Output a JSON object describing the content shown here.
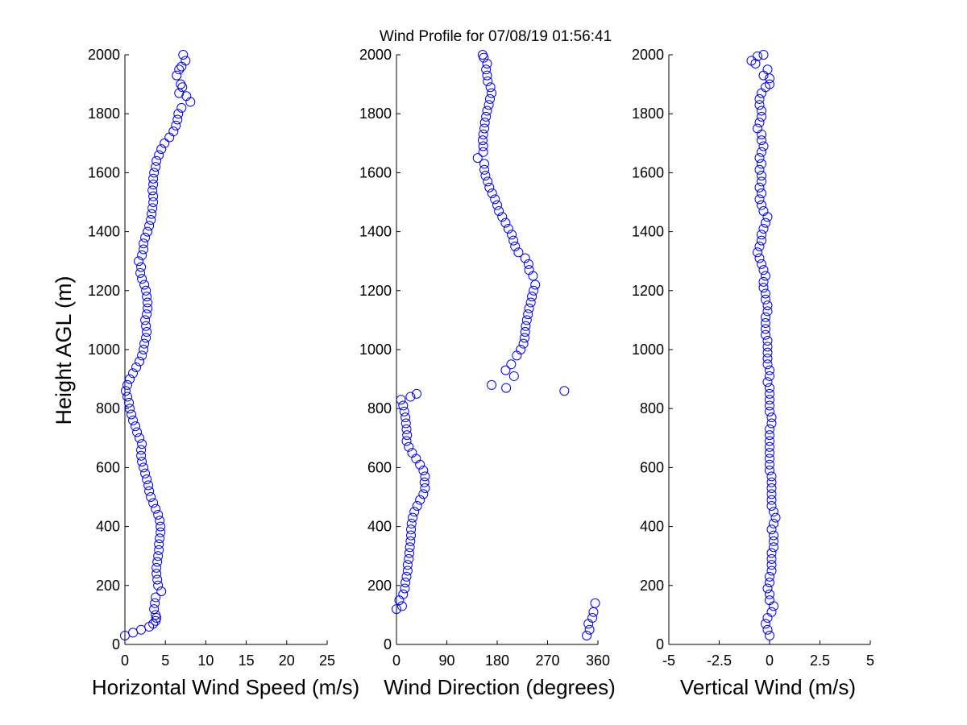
{
  "title": "Wind Profile for  07/08/19 01:56:41",
  "ylabel": "Height AGL (m)",
  "colors": {
    "marker": "#0000ff",
    "axis": "#000000",
    "background": "#ffffff"
  },
  "chart_data": [
    {
      "type": "scatter",
      "name": "speed",
      "xlabel": "Horizontal Wind Speed (m/s)",
      "ylabel": "Height AGL (m)",
      "xlim": [
        0,
        25
      ],
      "ylim": [
        0,
        2000
      ],
      "xticks": [
        "0",
        "5",
        "10",
        "15",
        "20",
        "25"
      ],
      "yticks": [
        "0",
        "200",
        "400",
        "600",
        "800",
        "1000",
        "1200",
        "1400",
        "1600",
        "1800",
        "2000"
      ],
      "grid": false,
      "marker": "open-circle",
      "points": [
        [
          0,
          30
        ],
        [
          1,
          40
        ],
        [
          2,
          50
        ],
        [
          3,
          60
        ],
        [
          3.5,
          70
        ],
        [
          3.8,
          80
        ],
        [
          3.9,
          90
        ],
        [
          3.8,
          100
        ],
        [
          3.6,
          120
        ],
        [
          3.7,
          140
        ],
        [
          3.8,
          160
        ],
        [
          4.5,
          180
        ],
        [
          4.1,
          200
        ],
        [
          4,
          220
        ],
        [
          3.9,
          240
        ],
        [
          3.9,
          260
        ],
        [
          4,
          280
        ],
        [
          4.1,
          300
        ],
        [
          4.2,
          320
        ],
        [
          4.2,
          340
        ],
        [
          4.3,
          360
        ],
        [
          4.4,
          380
        ],
        [
          4.4,
          400
        ],
        [
          4.3,
          420
        ],
        [
          4.1,
          440
        ],
        [
          3.8,
          460
        ],
        [
          3.5,
          480
        ],
        [
          3.2,
          500
        ],
        [
          3,
          520
        ],
        [
          2.9,
          540
        ],
        [
          2.7,
          560
        ],
        [
          2.5,
          580
        ],
        [
          2.3,
          600
        ],
        [
          2.1,
          620
        ],
        [
          2,
          640
        ],
        [
          2,
          660
        ],
        [
          2.1,
          680
        ],
        [
          1.8,
          700
        ],
        [
          1.5,
          720
        ],
        [
          1.3,
          740
        ],
        [
          1,
          760
        ],
        [
          0.8,
          780
        ],
        [
          0.6,
          800
        ],
        [
          0.5,
          820
        ],
        [
          0.3,
          840
        ],
        [
          0.1,
          860
        ],
        [
          0.3,
          880
        ],
        [
          0.6,
          900
        ],
        [
          1,
          920
        ],
        [
          1.4,
          940
        ],
        [
          1.8,
          960
        ],
        [
          2.1,
          980
        ],
        [
          2.3,
          1000
        ],
        [
          2.4,
          1020
        ],
        [
          2.6,
          1040
        ],
        [
          2.7,
          1060
        ],
        [
          2.6,
          1080
        ],
        [
          2.5,
          1100
        ],
        [
          2.7,
          1120
        ],
        [
          2.8,
          1140
        ],
        [
          2.8,
          1160
        ],
        [
          2.7,
          1180
        ],
        [
          2.6,
          1200
        ],
        [
          2.4,
          1220
        ],
        [
          2.1,
          1240
        ],
        [
          1.9,
          1260
        ],
        [
          2,
          1280
        ],
        [
          1.7,
          1300
        ],
        [
          2.1,
          1320
        ],
        [
          2.3,
          1340
        ],
        [
          2.3,
          1360
        ],
        [
          2.5,
          1380
        ],
        [
          2.8,
          1400
        ],
        [
          3,
          1420
        ],
        [
          3.2,
          1440
        ],
        [
          3.3,
          1460
        ],
        [
          3.4,
          1480
        ],
        [
          3.5,
          1500
        ],
        [
          3.5,
          1520
        ],
        [
          3.4,
          1540
        ],
        [
          3.5,
          1560
        ],
        [
          3.5,
          1580
        ],
        [
          3.6,
          1600
        ],
        [
          3.8,
          1620
        ],
        [
          3.9,
          1640
        ],
        [
          4.2,
          1660
        ],
        [
          4.5,
          1680
        ],
        [
          4.9,
          1700
        ],
        [
          5.5,
          1720
        ],
        [
          6,
          1740
        ],
        [
          6.3,
          1760
        ],
        [
          6.5,
          1780
        ],
        [
          6.6,
          1800
        ],
        [
          7,
          1820
        ],
        [
          8.1,
          1840
        ],
        [
          7.6,
          1860
        ],
        [
          6.7,
          1870
        ],
        [
          7.1,
          1890
        ],
        [
          6.9,
          1900
        ],
        [
          6.4,
          1930
        ],
        [
          6.7,
          1950
        ],
        [
          7,
          1960
        ],
        [
          7.5,
          1980
        ],
        [
          7.2,
          2000
        ]
      ]
    },
    {
      "type": "scatter",
      "name": "direction",
      "xlabel": "Wind Direction (degrees)",
      "xlim": [
        0,
        360
      ],
      "ylim": [
        0,
        2000
      ],
      "xticks": [
        "0",
        "90",
        "180",
        "270",
        "360"
      ],
      "yticks": [
        "0",
        "200",
        "400",
        "600",
        "800",
        "1000",
        "1200",
        "1400",
        "1600",
        "1800",
        "2000"
      ],
      "grid": false,
      "marker": "open-circle",
      "points": [
        [
          340,
          30
        ],
        [
          345,
          50
        ],
        [
          343,
          70
        ],
        [
          350,
          90
        ],
        [
          352,
          110
        ],
        [
          355,
          140
        ],
        [
          0,
          120
        ],
        [
          10,
          130
        ],
        [
          5,
          150
        ],
        [
          12,
          170
        ],
        [
          15,
          190
        ],
        [
          16,
          210
        ],
        [
          18,
          230
        ],
        [
          20,
          250
        ],
        [
          20,
          270
        ],
        [
          22,
          290
        ],
        [
          23,
          310
        ],
        [
          24,
          330
        ],
        [
          25,
          350
        ],
        [
          26,
          370
        ],
        [
          26,
          390
        ],
        [
          27,
          410
        ],
        [
          29,
          430
        ],
        [
          32,
          450
        ],
        [
          37,
          470
        ],
        [
          42,
          490
        ],
        [
          48,
          510
        ],
        [
          51,
          530
        ],
        [
          50,
          550
        ],
        [
          51,
          570
        ],
        [
          48,
          590
        ],
        [
          42,
          610
        ],
        [
          35,
          630
        ],
        [
          28,
          650
        ],
        [
          22,
          670
        ],
        [
          18,
          690
        ],
        [
          19,
          710
        ],
        [
          18,
          730
        ],
        [
          17,
          750
        ],
        [
          16,
          770
        ],
        [
          14,
          790
        ],
        [
          12,
          810
        ],
        [
          8,
          830
        ],
        [
          25,
          840
        ],
        [
          36,
          850
        ],
        [
          300,
          860
        ],
        [
          196,
          870
        ],
        [
          170,
          880
        ],
        [
          210,
          910
        ],
        [
          195,
          930
        ],
        [
          205,
          950
        ],
        [
          215,
          980
        ],
        [
          222,
          1000
        ],
        [
          227,
          1020
        ],
        [
          229,
          1040
        ],
        [
          230,
          1060
        ],
        [
          231,
          1080
        ],
        [
          233,
          1100
        ],
        [
          235,
          1120
        ],
        [
          237,
          1140
        ],
        [
          240,
          1160
        ],
        [
          242,
          1180
        ],
        [
          245,
          1200
        ],
        [
          248,
          1220
        ],
        [
          244,
          1250
        ],
        [
          237,
          1270
        ],
        [
          236,
          1290
        ],
        [
          230,
          1310
        ],
        [
          218,
          1330
        ],
        [
          212,
          1350
        ],
        [
          209,
          1370
        ],
        [
          206,
          1390
        ],
        [
          200,
          1410
        ],
        [
          195,
          1430
        ],
        [
          189,
          1450
        ],
        [
          183,
          1470
        ],
        [
          180,
          1490
        ],
        [
          176,
          1510
        ],
        [
          171,
          1530
        ],
        [
          166,
          1550
        ],
        [
          163,
          1570
        ],
        [
          159,
          1590
        ],
        [
          157,
          1610
        ],
        [
          157,
          1630
        ],
        [
          145,
          1650
        ],
        [
          155,
          1670
        ],
        [
          155,
          1690
        ],
        [
          154,
          1710
        ],
        [
          155,
          1730
        ],
        [
          157,
          1750
        ],
        [
          158,
          1770
        ],
        [
          160,
          1790
        ],
        [
          162,
          1810
        ],
        [
          165,
          1830
        ],
        [
          167,
          1850
        ],
        [
          170,
          1870
        ],
        [
          168,
          1890
        ],
        [
          163,
          1910
        ],
        [
          162,
          1930
        ],
        [
          160,
          1950
        ],
        [
          162,
          1970
        ],
        [
          156,
          1990
        ],
        [
          154,
          2000
        ]
      ]
    },
    {
      "type": "scatter",
      "name": "vertical",
      "xlabel": "Vertical Wind (m/s)",
      "xlim": [
        -5,
        5
      ],
      "ylim": [
        0,
        2000
      ],
      "xticks": [
        "-5",
        "-2.5",
        "0",
        "2.5",
        "5"
      ],
      "yticks": [
        "0",
        "200",
        "400",
        "600",
        "800",
        "1000",
        "1200",
        "1400",
        "1600",
        "1800",
        "2000"
      ],
      "grid": false,
      "marker": "open-circle",
      "points": [
        [
          0,
          30
        ],
        [
          -0.1,
          50
        ],
        [
          -0.2,
          70
        ],
        [
          -0.1,
          90
        ],
        [
          0.1,
          110
        ],
        [
          0.2,
          130
        ],
        [
          0,
          150
        ],
        [
          0,
          170
        ],
        [
          -0.1,
          190
        ],
        [
          0,
          210
        ],
        [
          0,
          230
        ],
        [
          0.1,
          250
        ],
        [
          0.1,
          270
        ],
        [
          0.1,
          290
        ],
        [
          0.1,
          310
        ],
        [
          0.2,
          330
        ],
        [
          0.2,
          350
        ],
        [
          0.2,
          370
        ],
        [
          0.1,
          390
        ],
        [
          0.2,
          410
        ],
        [
          0.3,
          430
        ],
        [
          0.2,
          450
        ],
        [
          0.1,
          470
        ],
        [
          0.1,
          490
        ],
        [
          0.1,
          510
        ],
        [
          0.1,
          530
        ],
        [
          0.1,
          550
        ],
        [
          0.1,
          570
        ],
        [
          0,
          590
        ],
        [
          0,
          610
        ],
        [
          0,
          630
        ],
        [
          0,
          650
        ],
        [
          0,
          670
        ],
        [
          0,
          690
        ],
        [
          0,
          710
        ],
        [
          0,
          730
        ],
        [
          0.1,
          750
        ],
        [
          0.1,
          770
        ],
        [
          0,
          790
        ],
        [
          0,
          810
        ],
        [
          0,
          830
        ],
        [
          0,
          850
        ],
        [
          0,
          870
        ],
        [
          -0.1,
          890
        ],
        [
          0,
          910
        ],
        [
          0,
          930
        ],
        [
          -0.1,
          950
        ],
        [
          -0.1,
          970
        ],
        [
          -0.1,
          990
        ],
        [
          -0.1,
          1010
        ],
        [
          -0.1,
          1030
        ],
        [
          -0.2,
          1050
        ],
        [
          -0.2,
          1070
        ],
        [
          -0.2,
          1090
        ],
        [
          -0.2,
          1110
        ],
        [
          -0.1,
          1130
        ],
        [
          -0.1,
          1150
        ],
        [
          -0.2,
          1170
        ],
        [
          -0.2,
          1190
        ],
        [
          -0.3,
          1210
        ],
        [
          -0.3,
          1230
        ],
        [
          -0.2,
          1250
        ],
        [
          -0.3,
          1270
        ],
        [
          -0.4,
          1290
        ],
        [
          -0.5,
          1310
        ],
        [
          -0.6,
          1330
        ],
        [
          -0.5,
          1350
        ],
        [
          -0.4,
          1370
        ],
        [
          -0.4,
          1390
        ],
        [
          -0.3,
          1410
        ],
        [
          -0.2,
          1430
        ],
        [
          -0.1,
          1450
        ],
        [
          -0.3,
          1470
        ],
        [
          -0.4,
          1490
        ],
        [
          -0.5,
          1510
        ],
        [
          -0.4,
          1530
        ],
        [
          -0.5,
          1550
        ],
        [
          -0.4,
          1570
        ],
        [
          -0.4,
          1590
        ],
        [
          -0.5,
          1610
        ],
        [
          -0.4,
          1630
        ],
        [
          -0.5,
          1650
        ],
        [
          -0.4,
          1670
        ],
        [
          -0.3,
          1690
        ],
        [
          -0.4,
          1710
        ],
        [
          -0.4,
          1730
        ],
        [
          -0.6,
          1750
        ],
        [
          -0.5,
          1770
        ],
        [
          -0.4,
          1790
        ],
        [
          -0.4,
          1810
        ],
        [
          -0.5,
          1830
        ],
        [
          -0.5,
          1850
        ],
        [
          -0.4,
          1870
        ],
        [
          -0.2,
          1890
        ],
        [
          0,
          1900
        ],
        [
          0,
          1920
        ],
        [
          -0.3,
          1930
        ],
        [
          -0.1,
          1950
        ],
        [
          -0.7,
          1970
        ],
        [
          -0.9,
          1980
        ],
        [
          -0.6,
          1995
        ],
        [
          -0.3,
          2000
        ]
      ]
    }
  ]
}
